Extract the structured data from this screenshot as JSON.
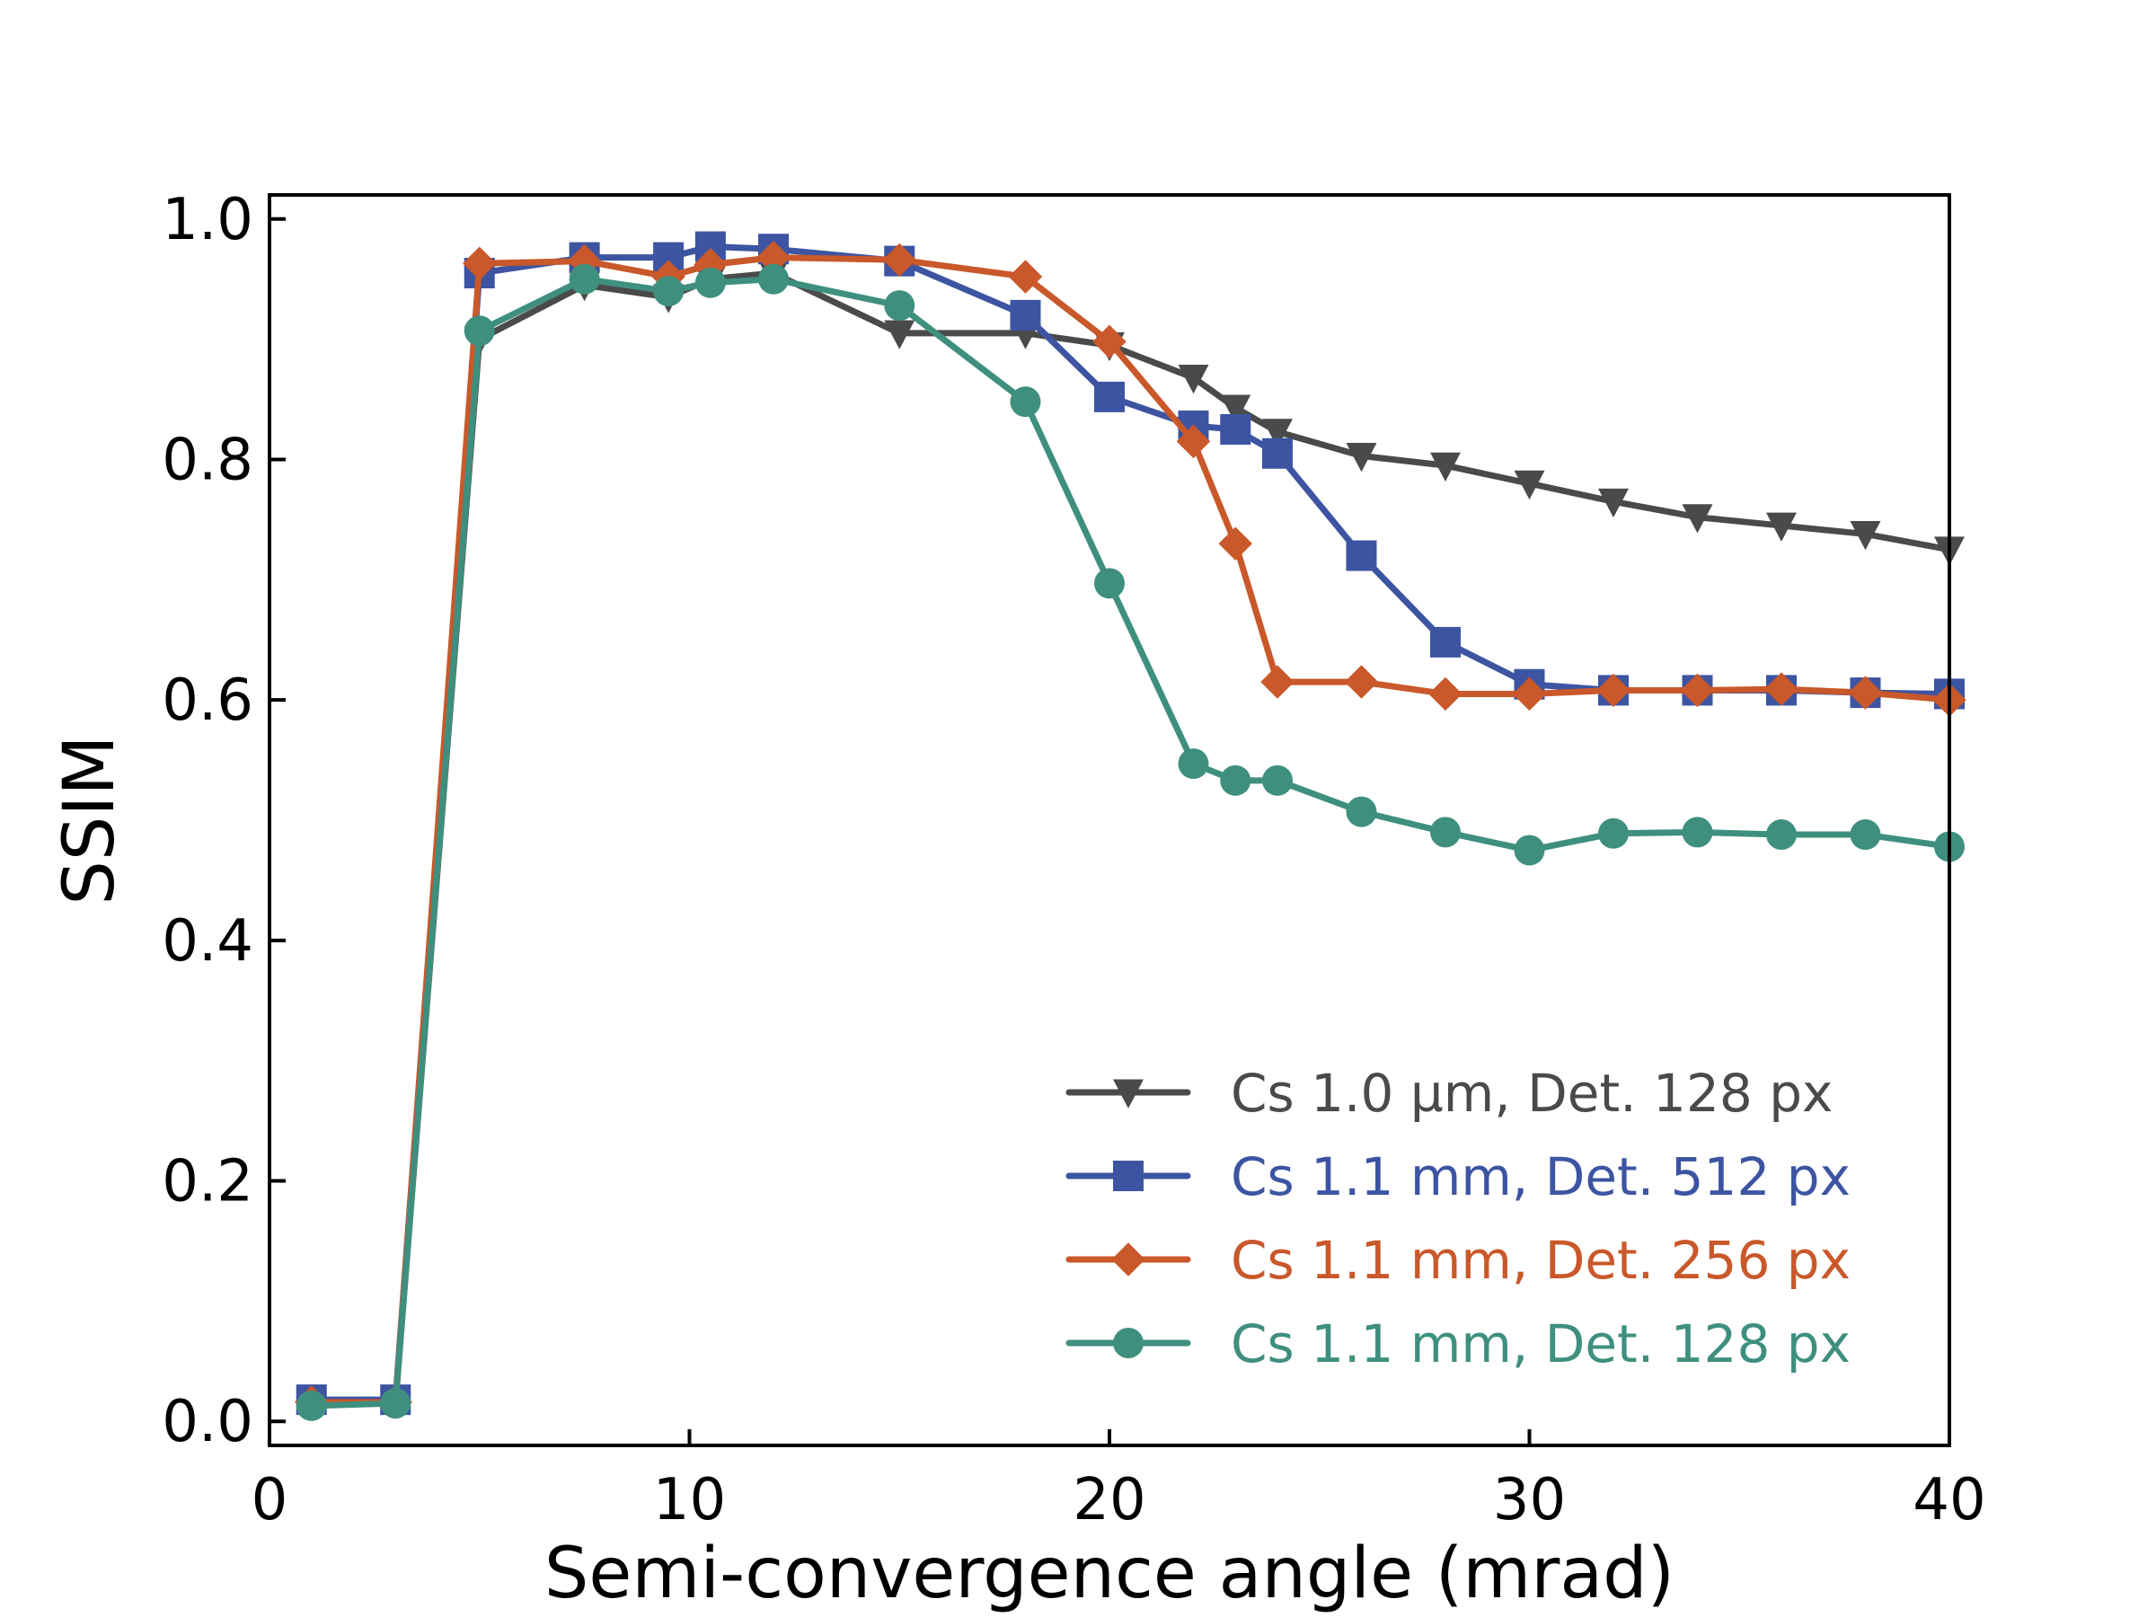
{
  "chart_data": {
    "type": "line",
    "xlabel": "Semi-convergence angle (mrad)",
    "ylabel": "SSIM",
    "xlim": [
      0,
      40
    ],
    "ylim": [
      -0.02,
      1.02
    ],
    "xticks": [
      0,
      10,
      20,
      30,
      40
    ],
    "xtick_labels": [
      "0",
      "10",
      "20",
      "30",
      "40"
    ],
    "yticks": [
      0.0,
      0.2,
      0.4,
      0.6,
      0.8,
      1.0
    ],
    "ytick_labels": [
      "0.0",
      "0.2",
      "0.4",
      "0.6",
      "0.8",
      "1.0"
    ],
    "grid": false,
    "legend_position": "lower-right",
    "series": [
      {
        "name": "Cs 1.0 µm, Det. 128 px",
        "color": "#4a4a4a",
        "marker": "triangle-down",
        "points": [
          [
            1,
            0.018
          ],
          [
            3,
            0.016
          ],
          [
            5,
            0.9
          ],
          [
            7.5,
            0.945
          ],
          [
            9.5,
            0.935
          ],
          [
            10.5,
            0.95
          ],
          [
            12,
            0.955
          ],
          [
            15,
            0.905
          ],
          [
            18,
            0.905
          ],
          [
            20,
            0.895
          ],
          [
            22,
            0.868
          ],
          [
            23,
            0.843
          ],
          [
            24,
            0.823
          ],
          [
            26,
            0.803
          ],
          [
            28,
            0.795
          ],
          [
            30,
            0.78
          ],
          [
            32,
            0.765
          ],
          [
            34,
            0.752
          ],
          [
            36,
            0.745
          ],
          [
            38,
            0.738
          ],
          [
            40,
            0.725
          ]
        ]
      },
      {
        "name": "Cs 1.1 mm, Det. 512 px",
        "color": "#3d54a2",
        "marker": "square",
        "points": [
          [
            1,
            0.018
          ],
          [
            3,
            0.018
          ],
          [
            5,
            0.955
          ],
          [
            7.5,
            0.968
          ],
          [
            9.5,
            0.968
          ],
          [
            10.5,
            0.977
          ],
          [
            12,
            0.975
          ],
          [
            15,
            0.965
          ],
          [
            18,
            0.92
          ],
          [
            20,
            0.852
          ],
          [
            22,
            0.828
          ],
          [
            23,
            0.825
          ],
          [
            24,
            0.805
          ],
          [
            26,
            0.72
          ],
          [
            28,
            0.648
          ],
          [
            30,
            0.613
          ],
          [
            32,
            0.608
          ],
          [
            34,
            0.608
          ],
          [
            36,
            0.608
          ],
          [
            38,
            0.606
          ],
          [
            40,
            0.605
          ]
        ]
      },
      {
        "name": "Cs 1.1 mm, Det. 256 px",
        "color": "#c9582a",
        "marker": "diamond",
        "points": [
          [
            1,
            0.016
          ],
          [
            3,
            0.016
          ],
          [
            5,
            0.963
          ],
          [
            7.5,
            0.965
          ],
          [
            9.5,
            0.952
          ],
          [
            10.5,
            0.962
          ],
          [
            12,
            0.968
          ],
          [
            15,
            0.966
          ],
          [
            18,
            0.952
          ],
          [
            20,
            0.898
          ],
          [
            22,
            0.815
          ],
          [
            23,
            0.73
          ],
          [
            24,
            0.615
          ],
          [
            26,
            0.615
          ],
          [
            28,
            0.605
          ],
          [
            30,
            0.605
          ],
          [
            32,
            0.608
          ],
          [
            34,
            0.608
          ],
          [
            36,
            0.609
          ],
          [
            38,
            0.606
          ],
          [
            40,
            0.6
          ]
        ]
      },
      {
        "name": "Cs 1.1 mm, Det. 128 px",
        "color": "#3f8f7f",
        "marker": "circle",
        "points": [
          [
            1,
            0.013
          ],
          [
            3,
            0.015
          ],
          [
            5,
            0.907
          ],
          [
            7.5,
            0.95
          ],
          [
            9.5,
            0.94
          ],
          [
            10.5,
            0.947
          ],
          [
            12,
            0.95
          ],
          [
            15,
            0.928
          ],
          [
            18,
            0.848
          ],
          [
            20,
            0.697
          ],
          [
            22,
            0.547
          ],
          [
            23,
            0.533
          ],
          [
            24,
            0.533
          ],
          [
            26,
            0.507
          ],
          [
            28,
            0.49
          ],
          [
            30,
            0.475
          ],
          [
            32,
            0.489
          ],
          [
            34,
            0.49
          ],
          [
            36,
            0.488
          ],
          [
            38,
            0.488
          ],
          [
            40,
            0.478
          ]
        ]
      }
    ]
  }
}
